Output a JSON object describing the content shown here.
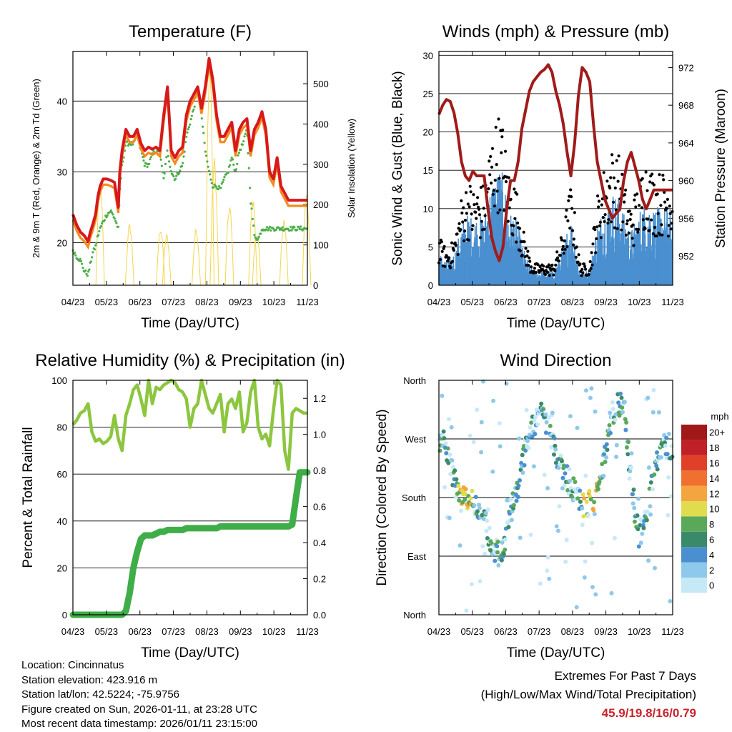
{
  "chart_data": [
    {
      "id": "temperature",
      "type": "line",
      "title": "Temperature (F)",
      "xlabel": "Time (Day/UTC)",
      "ylabel": "2m & 9m T (Red, Orange) & 2m Td (Green)",
      "y2label": "Solar Insolation (Yellow)",
      "x_ticks": [
        "04/23",
        "05/23",
        "06/23",
        "07/23",
        "08/23",
        "09/23",
        "10/23",
        "11/23"
      ],
      "ylim": [
        14,
        47
      ],
      "y_ticks": [
        20,
        30,
        40
      ],
      "y2lim": [
        0,
        580
      ],
      "y2_ticks": [
        0,
        100,
        200,
        300,
        400,
        500
      ],
      "x": [
        0,
        0.5,
        1,
        1.5,
        2,
        2.3,
        2.6,
        3,
        3.3,
        3.6,
        4,
        4.5,
        5,
        5.5,
        6,
        6.2,
        6.5,
        7,
        7.5,
        8,
        8.5,
        9,
        9.5,
        10,
        10.5,
        11,
        11.5,
        12,
        12.5,
        13,
        13.5,
        14,
        14.5,
        15,
        15.5,
        16,
        16.5,
        17,
        17.5,
        18,
        18.5,
        19,
        19.5,
        20,
        20.5,
        21,
        21.5,
        22,
        22.5,
        23,
        23.5,
        24,
        24.5,
        25,
        25.5,
        26,
        26.5,
        27,
        27.5,
        28,
        28.5,
        29,
        29.5,
        30,
        30.5,
        31
      ],
      "series": [
        {
          "name": "2m T",
          "color": "#d7191c",
          "values": [
            24,
            22.5,
            21.5,
            21,
            20.2,
            21.5,
            22.5,
            24,
            26.5,
            28,
            29,
            29,
            28.8,
            28.5,
            25,
            30,
            33,
            36,
            35,
            35,
            36,
            34,
            33,
            33.5,
            33.2,
            33.5,
            33,
            38,
            42,
            33,
            32,
            33,
            33.5,
            38,
            40,
            41,
            42,
            39,
            42,
            46,
            43,
            38,
            35,
            35,
            36,
            37,
            33,
            36,
            37,
            37.5,
            33,
            36,
            37,
            38.5,
            36,
            30,
            29,
            32,
            28,
            27,
            26,
            26,
            26,
            26,
            26,
            26
          ]
        },
        {
          "name": "2m Td",
          "color": "#4daf4a",
          "values": [
            19,
            18,
            17.5,
            16,
            15.5,
            17,
            18.5,
            19.5,
            21,
            22,
            23,
            24,
            24.5,
            23.5,
            22,
            27,
            31,
            34,
            34,
            34,
            35,
            33,
            31,
            31,
            32.5,
            33,
            32.5,
            29,
            33,
            30,
            29,
            30,
            31,
            35,
            37,
            39,
            42,
            38,
            33,
            30,
            28,
            28,
            27.5,
            29,
            30,
            32,
            30,
            33,
            34,
            36,
            26,
            21,
            20.5,
            22,
            22,
            22,
            22,
            22,
            22,
            22,
            22,
            22,
            22,
            22,
            22,
            22
          ]
        }
      ],
      "solar_peaks": [
        {
          "day": 3.6,
          "value": 260
        },
        {
          "day": 7.5,
          "value": 155
        },
        {
          "day": 11.6,
          "value": 150
        },
        {
          "day": 12.4,
          "value": 130
        },
        {
          "day": 16.3,
          "value": 145
        },
        {
          "day": 18.1,
          "value": 560
        },
        {
          "day": 18.7,
          "value": 320
        },
        {
          "day": 20.7,
          "value": 205
        },
        {
          "day": 23.8,
          "value": 220
        },
        {
          "day": 24.3,
          "value": 140
        },
        {
          "day": 27.9,
          "value": 170
        },
        {
          "day": 30.9,
          "value": 230
        }
      ],
      "solar_color": "#f5d54a",
      "dew_color": "#4daf4a",
      "temp_color": "#d7191c",
      "temp9m_color": "#f58a1f"
    },
    {
      "id": "winds",
      "type": "scatter",
      "title": "Winds (mph) & Pressure (mb)",
      "xlabel": "Time (Day/UTC)",
      "ylabel": "Sonic Wind & Gust (Blue, Black)",
      "y2label": "Station Pressure (Maroon)",
      "x_ticks": [
        "04/23",
        "05/23",
        "06/23",
        "07/23",
        "08/23",
        "09/23",
        "10/23",
        "11/23"
      ],
      "ylim": [
        0,
        30.5
      ],
      "y_ticks": [
        0,
        5,
        10,
        15,
        20,
        25,
        30
      ],
      "y2lim": [
        948.9,
        973.7
      ],
      "y2_ticks": [
        952,
        956,
        960,
        964,
        968,
        972
      ],
      "gust_color": "#000000",
      "wind_color": "#4a90d0",
      "pressure_color": "#a01b1b",
      "pressure": {
        "x": [
          0,
          0.5,
          1,
          1.5,
          2,
          2.5,
          3,
          3.5,
          4,
          4.5,
          5,
          5.5,
          6,
          6.5,
          7,
          7.5,
          8,
          8.5,
          9,
          9.5,
          10,
          10.5,
          11,
          11.5,
          12,
          12.5,
          13,
          13.5,
          14,
          14.5,
          15,
          15.5,
          16,
          16.5,
          17,
          17.5,
          18,
          18.5,
          19,
          19.5,
          20,
          20.5,
          21,
          21.5,
          22,
          22.5,
          23,
          23.5,
          24,
          24.5,
          25,
          25.5,
          26,
          26.5,
          27,
          27.5,
          28,
          28.5,
          29,
          29.5,
          30,
          30.5,
          31
        ],
        "values": [
          967,
          968,
          968.6,
          968.4,
          967.2,
          965,
          962,
          960.5,
          960,
          961,
          960.5,
          960.5,
          960.5,
          957,
          954,
          952.5,
          951.5,
          953,
          957,
          960,
          960,
          962,
          965.5,
          967.5,
          969.5,
          970.5,
          971,
          971.5,
          971.8,
          972.3,
          971.5,
          969.5,
          968,
          966,
          963,
          960.5,
          964,
          969,
          972,
          971.5,
          970.5,
          966,
          962,
          960,
          958,
          957,
          956,
          956.5,
          957,
          960,
          962,
          963,
          961.5,
          960,
          958,
          957,
          958,
          959,
          959,
          959,
          959,
          959,
          959
        ]
      }
    },
    {
      "id": "humidity",
      "type": "line",
      "title": "Relative Humidity (%) & Precipitation (in)",
      "xlabel": "Time (Day/UTC)",
      "ylabel": "Percent & Total Rainfall",
      "x_ticks": [
        "04/23",
        "05/23",
        "06/23",
        "07/23",
        "08/23",
        "09/23",
        "10/23",
        "11/23"
      ],
      "ylim": [
        0,
        100
      ],
      "y_ticks": [
        0,
        20,
        40,
        60,
        80,
        100
      ],
      "y2lim": [
        0,
        1.3
      ],
      "y2_ticks": [
        "0.0",
        "0.2",
        "0.4",
        "0.6",
        "0.8",
        "1.0",
        "1.2"
      ],
      "rh_color": "#8cc63f",
      "precip_color": "#3fae49",
      "x": [
        0,
        0.5,
        1,
        1.5,
        2,
        2.5,
        3,
        3.5,
        4,
        4.5,
        5,
        5.5,
        6,
        6.5,
        7,
        7.5,
        8,
        8.5,
        9,
        9.5,
        10,
        10.5,
        11,
        11.5,
        12,
        12.5,
        13,
        13.5,
        14,
        14.5,
        15,
        15.5,
        16,
        16.5,
        17,
        17.5,
        18,
        18.5,
        19,
        19.5,
        20,
        20.5,
        21,
        21.5,
        22,
        22.5,
        23,
        23.5,
        24,
        24.5,
        25,
        25.5,
        26,
        26.5,
        27,
        27.5,
        28,
        28.5,
        29,
        29.5,
        30,
        30.5,
        31
      ],
      "rh": [
        81,
        83,
        86,
        87,
        90,
        78,
        74,
        75,
        73,
        74,
        76,
        85,
        75,
        70,
        85,
        90,
        96,
        98,
        92,
        85,
        100,
        90,
        97,
        96,
        98,
        99,
        100,
        99,
        96,
        95,
        92,
        80,
        88,
        90,
        100,
        94,
        88,
        86,
        90,
        94,
        78,
        90,
        92,
        88,
        95,
        78,
        82,
        95,
        100,
        80,
        75,
        77,
        72,
        87,
        100,
        98,
        70,
        62,
        86,
        88,
        87,
        86,
        86
      ],
      "precip": [
        0,
        0,
        0,
        0,
        0,
        0,
        0,
        0,
        0,
        0,
        0,
        0,
        0,
        0,
        0.02,
        0.12,
        0.26,
        0.35,
        0.42,
        0.44,
        0.44,
        0.44,
        0.45,
        0.46,
        0.46,
        0.47,
        0.47,
        0.47,
        0.47,
        0.47,
        0.48,
        0.48,
        0.48,
        0.48,
        0.48,
        0.48,
        0.48,
        0.48,
        0.48,
        0.49,
        0.49,
        0.49,
        0.49,
        0.49,
        0.49,
        0.49,
        0.49,
        0.49,
        0.49,
        0.49,
        0.49,
        0.49,
        0.49,
        0.49,
        0.49,
        0.49,
        0.49,
        0.49,
        0.5,
        0.65,
        0.79,
        0.79,
        0.79
      ]
    },
    {
      "id": "direction",
      "type": "scatter",
      "title": "Wind Direction",
      "xlabel": "Time (Day/UTC)",
      "ylabel": "Direction (Colored By Speed)",
      "x_ticks": [
        "04/23",
        "05/23",
        "06/23",
        "07/23",
        "08/23",
        "09/23",
        "10/23",
        "11/23"
      ],
      "y_ticks": [
        "North",
        "East",
        "South",
        "West",
        "North"
      ],
      "ylim": [
        0,
        360
      ],
      "legend_title": "mph",
      "legend_labels": [
        "0",
        "2",
        "4",
        "6",
        "8",
        "10",
        "12",
        "14",
        "16",
        "18",
        "20+"
      ],
      "legend_colors": [
        "#c6e9f8",
        "#8ec8ea",
        "#4a90d0",
        "#3a8a6a",
        "#5aa85a",
        "#e0dc50",
        "#f5a540",
        "#f07030",
        "#e04028",
        "#c02028",
        "#a01818"
      ],
      "track": [
        {
          "d": 0.3,
          "dir": 270
        },
        {
          "d": 1.2,
          "dir": 250
        },
        {
          "d": 2,
          "dir": 210
        },
        {
          "d": 2.5,
          "dir": 190
        },
        {
          "d": 3,
          "dir": 180
        },
        {
          "d": 3.8,
          "dir": 178
        },
        {
          "d": 4.5,
          "dir": 175
        },
        {
          "d": 5.5,
          "dir": 165
        },
        {
          "d": 7,
          "dir": 110
        },
        {
          "d": 8,
          "dir": 90
        },
        {
          "d": 8.8,
          "dir": 120
        },
        {
          "d": 9.5,
          "dir": 160
        },
        {
          "d": 10.5,
          "dir": 190
        },
        {
          "d": 11.5,
          "dir": 260
        },
        {
          "d": 12.5,
          "dir": 290
        },
        {
          "d": 13.5,
          "dir": 310
        },
        {
          "d": 14.5,
          "dir": 290
        },
        {
          "d": 15.5,
          "dir": 250
        },
        {
          "d": 16.5,
          "dir": 220
        },
        {
          "d": 17.5,
          "dir": 200
        },
        {
          "d": 18.5,
          "dir": 175
        },
        {
          "d": 19.5,
          "dir": 165
        },
        {
          "d": 20.5,
          "dir": 180
        },
        {
          "d": 21.5,
          "dir": 210
        },
        {
          "d": 22.5,
          "dir": 270
        },
        {
          "d": 23.5,
          "dir": 320
        },
        {
          "d": 24.5,
          "dir": 330
        },
        {
          "d": 25.5,
          "dir": 200
        },
        {
          "d": 26.5,
          "dir": 120
        },
        {
          "d": 27.5,
          "dir": 160
        },
        {
          "d": 28.5,
          "dir": 210
        },
        {
          "d": 29.5,
          "dir": 260
        },
        {
          "d": 30.5,
          "dir": 260
        }
      ]
    }
  ],
  "station": {
    "location": "Location: Cincinnatus",
    "elevation": "Station elevation: 423.916 m",
    "latlon": "Station lat/lon: 42.5224; -75.9756",
    "created": "Figure created on Sun, 2026-01-11, at 23:28 UTC",
    "timestamp": "Most recent data timestamp: 2026/01/11 23:15:00"
  },
  "extremes": {
    "heading": "Extremes For Past 7 Days",
    "subheading": "(High/Low/Max Wind/Total Precipitation)",
    "values": "45.9/19.8/16/0.79",
    "color": "#c8232c"
  }
}
